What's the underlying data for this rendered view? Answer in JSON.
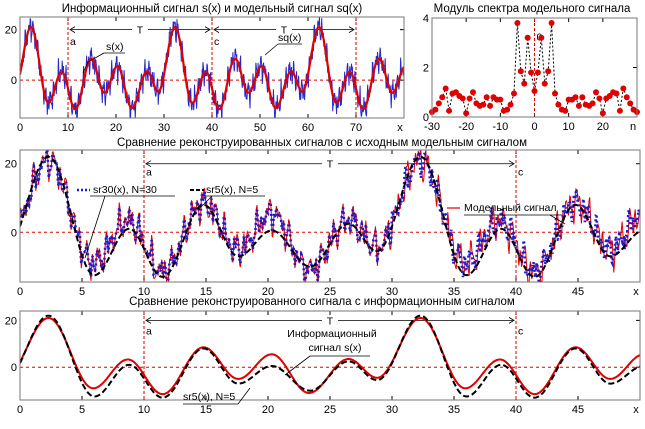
{
  "chart_data": [
    {
      "type": "line",
      "title": "Информационный сигнал s(x) и модельный сигнал sq(x)",
      "xlim": [
        0,
        80
      ],
      "ylim": [
        -15,
        25
      ],
      "xticks": [
        "0",
        "10",
        "20",
        "30",
        "40",
        "50",
        "60",
        "70"
      ],
      "xtick_values": [
        0,
        10,
        20,
        30,
        40,
        50,
        60,
        70
      ],
      "yticks": [
        "0",
        "20"
      ],
      "ytick_values": [
        0,
        20
      ],
      "xlabel": "x",
      "period": 30,
      "markers": [
        {
          "x": 10,
          "label": "a"
        },
        {
          "x": 40,
          "label": "c"
        },
        {
          "x": 70,
          "label": ""
        }
      ],
      "span_label": "T",
      "series": [
        {
          "name": "s(x)",
          "color": "#e00000",
          "style": "solid",
          "noise_amplitude": 0,
          "extrema": [
            [
              2.3,
              21
            ],
            [
              5.9,
              -9
            ],
            [
              8.7,
              3.3
            ],
            [
              11.5,
              -11.5
            ],
            [
              14.8,
              8.5
            ],
            [
              17.6,
              -5
            ],
            [
              20.3,
              5.5
            ],
            [
              23.3,
              -11
            ],
            [
              26.5,
              3.5
            ],
            [
              28.8,
              -4.5
            ]
          ]
        },
        {
          "name": "sq(x)",
          "color": "#2828c8",
          "style": "thin",
          "noise_amplitude": 5.5,
          "base": "s(x)"
        }
      ]
    },
    {
      "type": "scatter",
      "title": "Модуль спектра модельного сигнала",
      "xlim": [
        -30,
        30
      ],
      "ylim": [
        0,
        4
      ],
      "xticks": [
        "-30",
        "-20",
        "-10",
        "0",
        "10",
        "20"
      ],
      "xtick_values": [
        -30,
        -20,
        -10,
        0,
        10,
        20
      ],
      "yticks": [
        "0",
        "2",
        "4"
      ],
      "ytick_values": [
        0,
        2,
        4
      ],
      "xlabel": "n",
      "marker_label": "0",
      "color": "#e00000",
      "n": [
        -30,
        -29,
        -28,
        -27,
        -26,
        -25,
        -24,
        -23,
        -22,
        -21,
        -20,
        -19,
        -18,
        -17,
        -16,
        -15,
        -14,
        -13,
        -12,
        -11,
        -10,
        -9,
        -8,
        -7,
        -6,
        -5,
        -4,
        -3,
        -2,
        -1,
        0,
        1,
        2,
        3,
        4,
        5,
        6,
        7,
        8,
        9,
        10,
        11,
        12,
        13,
        14,
        15,
        16,
        17,
        18,
        19,
        20,
        21,
        22,
        23,
        24,
        25,
        26,
        27,
        28,
        29,
        30
      ],
      "values": [
        0.2,
        0.3,
        0.55,
        0.8,
        1.15,
        0.25,
        0.95,
        1.0,
        0.85,
        0.75,
        0.15,
        0.75,
        1.0,
        0.55,
        0.45,
        0.5,
        0.8,
        0.45,
        0.8,
        0.7,
        0.7,
        0.25,
        0.3,
        0.5,
        0.95,
        3.8,
        1.85,
        1.35,
        3.2,
        1.8,
        1.05,
        1.8,
        3.2,
        1.35,
        1.85,
        3.8,
        0.95,
        0.5,
        0.3,
        0.25,
        0.7,
        0.7,
        0.8,
        0.45,
        0.8,
        0.5,
        0.45,
        0.55,
        1.0,
        0.75,
        0.15,
        0.75,
        0.85,
        1.0,
        0.95,
        0.25,
        1.15,
        0.8,
        0.55,
        0.3,
        0.2
      ]
    },
    {
      "type": "line",
      "title": "Сравнение реконструированных сигналов с исходным модельным сигналом",
      "xlim": [
        0,
        50
      ],
      "ylim": [
        -14.5,
        24
      ],
      "xticks": [
        "0",
        "5",
        "10",
        "15",
        "20",
        "25",
        "30",
        "35",
        "40",
        "45"
      ],
      "xtick_values": [
        0,
        5,
        10,
        15,
        20,
        25,
        30,
        35,
        40,
        45
      ],
      "yticks": [
        "0",
        "20"
      ],
      "ytick_values": [
        0,
        20
      ],
      "xlabel": "x",
      "markers": [
        {
          "x": 10,
          "label": "a"
        },
        {
          "x": 40,
          "label": "c"
        }
      ],
      "span_label": "T",
      "series": [
        {
          "name": "Модельный сигнал",
          "color": "#e00000",
          "style": "thin"
        },
        {
          "name": "sr30(x), N=30",
          "color": "#1a1ad0",
          "style": "dotted"
        },
        {
          "name": "sr5(x), N=5",
          "color": "#000000",
          "style": "dashed",
          "extrema": [
            [
              2.3,
              22
            ],
            [
              6,
              -12.5
            ],
            [
              8.8,
              1
            ],
            [
              11.5,
              -13
            ],
            [
              14.8,
              8
            ],
            [
              17.6,
              -7
            ],
            [
              20.3,
              0.5
            ],
            [
              23.4,
              -10
            ],
            [
              26.5,
              2.5
            ],
            [
              28.8,
              -5.5
            ]
          ]
        }
      ]
    },
    {
      "type": "line",
      "title": "Сравнение реконструированного сигнала с информационным сигналом",
      "xlim": [
        0,
        50
      ],
      "ylim": [
        -14,
        24
      ],
      "xticks": [
        "0",
        "5",
        "10",
        "15",
        "20",
        "25",
        "30",
        "35",
        "40",
        "45"
      ],
      "xtick_values": [
        0,
        5,
        10,
        15,
        20,
        25,
        30,
        35,
        40,
        45
      ],
      "yticks": [
        "0",
        "20"
      ],
      "ytick_values": [
        0,
        20
      ],
      "xlabel": "x",
      "markers": [
        {
          "x": 10,
          "label": "a"
        },
        {
          "x": 40,
          "label": "c"
        }
      ],
      "span_label": "T",
      "series": [
        {
          "name_line1": "Информационный",
          "name_line2": "сигнал s(x)",
          "color": "#e00000",
          "style": "solid"
        },
        {
          "name": "sr5(x), N=5",
          "color": "#000000",
          "style": "dashed"
        }
      ]
    }
  ]
}
